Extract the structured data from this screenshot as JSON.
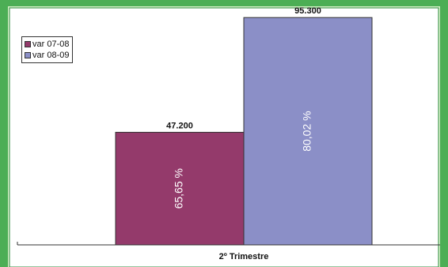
{
  "chart_data": {
    "type": "bar",
    "categories": [
      "2º Trimestre"
    ],
    "series": [
      {
        "name": "var 07-08",
        "values": [
          47200
        ],
        "value_label": "47.200",
        "inner_label": "65,65 %",
        "color": "#943a6b"
      },
      {
        "name": "var 08-09",
        "values": [
          95300
        ],
        "value_label": "95.300",
        "inner_label": "80,02 %",
        "color": "#8b8fc7"
      }
    ],
    "ylim": [
      0,
      100000
    ],
    "grid": false,
    "legend_position": "top-left"
  },
  "colors": {
    "frame_green": "#3aa84a",
    "frame_light": "#d6f0c8"
  }
}
